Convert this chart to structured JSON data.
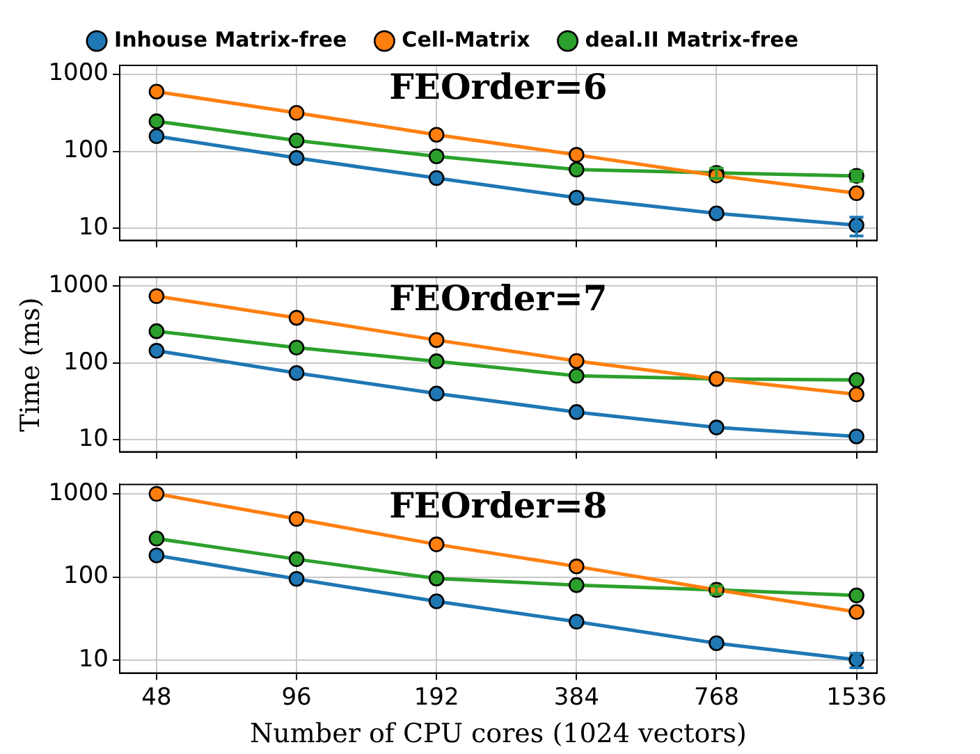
{
  "chart_data": [
    {
      "type": "line",
      "title": "FEOrder=6",
      "x": [
        48,
        96,
        192,
        384,
        768,
        1536
      ],
      "log": "xy",
      "xlim": [
        40,
        1700
      ],
      "xticks": [
        48,
        96,
        192,
        384,
        768,
        1536
      ],
      "ylim": [
        7,
        1300
      ],
      "yticks": [
        10,
        100,
        1000
      ],
      "grid": true,
      "legend": "top",
      "tick_labels": "y",
      "marker": "circle",
      "line_style": "solid",
      "series": [
        {
          "name": "Inhouse Matrix-free",
          "color": "#1f77b4",
          "values": [
            157,
            82,
            45,
            25,
            15.7,
            11
          ],
          "errors": [
            null,
            null,
            null,
            null,
            null,
            3
          ]
        },
        {
          "name": "Cell-Matrix",
          "color": "#ff7f0e",
          "values": [
            594,
            315,
            164,
            90,
            48.5,
            28.6
          ]
        },
        {
          "name": "deal.II Matrix-free",
          "color": "#2ca02c",
          "values": [
            245,
            138,
            86,
            58,
            52.5,
            48
          ],
          "errors": [
            null,
            null,
            null,
            null,
            8,
            7
          ]
        }
      ]
    },
    {
      "type": "line",
      "title": "FEOrder=7",
      "ylabel": "Time (ms)",
      "x": [
        48,
        96,
        192,
        384,
        768,
        1536
      ],
      "log": "xy",
      "xlim": [
        40,
        1700
      ],
      "xticks": [
        48,
        96,
        192,
        384,
        768,
        1536
      ],
      "ylim": [
        7,
        1300
      ],
      "yticks": [
        10,
        100,
        1000
      ],
      "grid": true,
      "tick_labels": "y",
      "marker": "circle",
      "line_style": "solid",
      "series": [
        {
          "color": "#1f77b4",
          "values": [
            144,
            74,
            40,
            23,
            14.5,
            11.1
          ]
        },
        {
          "color": "#ff7f0e",
          "values": [
            736,
            385,
            198,
            106,
            62,
            39
          ]
        },
        {
          "color": "#2ca02c",
          "values": [
            258,
            158,
            105,
            68,
            62,
            60
          ]
        }
      ]
    },
    {
      "type": "line",
      "title": "FEOrder=8",
      "xlabel": "Number of CPU cores (1024 vectors)",
      "x": [
        48,
        96,
        192,
        384,
        768,
        1536
      ],
      "log": "xy",
      "xlim": [
        40,
        1700
      ],
      "xticks": [
        48,
        96,
        192,
        384,
        768,
        1536
      ],
      "ylim": [
        7,
        1300
      ],
      "yticks": [
        10,
        100,
        1000
      ],
      "grid": true,
      "marker": "circle",
      "line_style": "solid",
      "series": [
        {
          "color": "#1f77b4",
          "values": [
            182,
            95,
            51,
            29,
            16,
            10.1
          ],
          "errors": [
            null,
            null,
            null,
            null,
            null,
            2
          ]
        },
        {
          "color": "#ff7f0e",
          "values": [
            1000,
            500,
            247,
            134,
            70,
            38
          ]
        },
        {
          "color": "#2ca02c",
          "values": [
            290,
            164,
            96,
            80,
            70,
            60
          ],
          "errors": [
            null,
            null,
            null,
            null,
            8,
            null
          ]
        }
      ]
    }
  ]
}
